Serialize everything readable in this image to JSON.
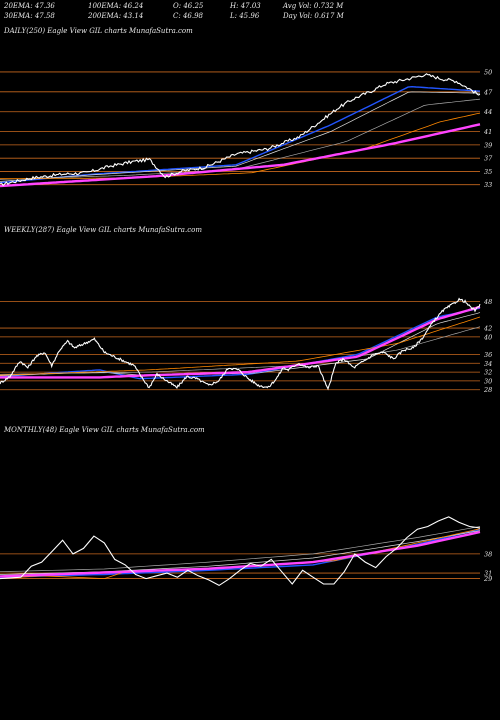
{
  "header": {
    "row1": [
      "20EMA: 47.36",
      "100EMA: 46.24",
      "O: 46.25",
      "H: 47.03",
      "Avg Vol: 0.732  M"
    ],
    "row2": [
      "30EMA: 47.58",
      "200EMA: 43.14",
      "C: 46.98",
      "L: 45.96",
      "Day Vol: 0.617 M"
    ]
  },
  "colors": {
    "background": "#000000",
    "price": "#ffffff",
    "ema_short": "#2255ff",
    "ema_long": "#ff44ff",
    "ema_mid": "#ff8800",
    "level_line": "#c8681e"
  },
  "chart_data": [
    {
      "type": "line",
      "title": "DAILY(250) Eagle  View  GIL  charts MunafaSutra.com",
      "y_ticks": [
        50,
        47,
        44,
        41,
        39,
        37,
        35,
        33
      ],
      "ylim": [
        32.2,
        51.8
      ],
      "n": 250,
      "price_keys": [
        [
          0,
          33.0
        ],
        [
          20,
          34.0
        ],
        [
          40,
          34.6
        ],
        [
          55,
          34.8
        ],
        [
          70,
          35.8
        ],
        [
          85,
          36.5
        ],
        [
          95,
          36.8
        ],
        [
          105,
          34.2
        ],
        [
          115,
          35.0
        ],
        [
          130,
          35.6
        ],
        [
          150,
          37.6
        ],
        [
          170,
          38.4
        ],
        [
          190,
          40.2
        ],
        [
          205,
          42.8
        ],
        [
          215,
          44.6
        ],
        [
          225,
          46.0
        ],
        [
          235,
          47.0
        ],
        [
          245,
          48.2
        ],
        [
          260,
          49.0
        ],
        [
          270,
          49.6
        ],
        [
          280,
          49.0
        ],
        [
          290,
          48.6
        ],
        [
          300,
          47.2
        ],
        [
          305,
          46.4
        ]
      ],
      "series": [
        {
          "values": [
            [
              0,
              33.3
            ],
            [
              60,
              34.6
            ],
            [
              150,
              36.0
            ],
            [
              210,
              42.0
            ],
            [
              260,
              47.8
            ],
            [
              305,
              47.1
            ]
          ]
        },
        {
          "values": [
            [
              0,
              33.5
            ],
            [
              60,
              34.5
            ],
            [
              150,
              35.8
            ],
            [
              210,
              41.0
            ],
            [
              260,
              47.0
            ],
            [
              305,
              46.8
            ]
          ]
        },
        {
          "values": [
            [
              0,
              33.8
            ],
            [
              80,
              34.4
            ],
            [
              150,
              35.3
            ],
            [
              220,
              39.5
            ],
            [
              270,
              45.0
            ],
            [
              305,
              45.9
            ]
          ]
        },
        {
          "values": [
            [
              0,
              33.9
            ],
            [
              80,
              34.0
            ],
            [
              160,
              34.8
            ],
            [
              230,
              38.3
            ],
            [
              280,
              42.5
            ],
            [
              305,
              43.8
            ]
          ]
        },
        {
          "values": [
            [
              0,
              32.8
            ],
            [
              100,
              34.3
            ],
            [
              180,
              36.0
            ],
            [
              250,
              39.2
            ],
            [
              305,
              42.1
            ]
          ]
        }
      ]
    },
    {
      "type": "line",
      "title": "WEEKLY(287) Eagle  View  GIL  charts MunafaSutra.com",
      "y_ticks": [
        48,
        42,
        40,
        36,
        34,
        32,
        30,
        28
      ],
      "ylim": [
        26.8,
        49.5
      ],
      "n": 287,
      "price_keys": [
        [
          0,
          29.5
        ],
        [
          10,
          31.0
        ],
        [
          20,
          34.5
        ],
        [
          28,
          33.0
        ],
        [
          36,
          35.5
        ],
        [
          45,
          36.5
        ],
        [
          52,
          33.5
        ],
        [
          60,
          37.0
        ],
        [
          68,
          39.0
        ],
        [
          75,
          37.5
        ],
        [
          85,
          38.5
        ],
        [
          95,
          39.5
        ],
        [
          105,
          36.5
        ],
        [
          115,
          35.5
        ],
        [
          125,
          34.5
        ],
        [
          135,
          33.5
        ],
        [
          142,
          31.0
        ],
        [
          150,
          28.5
        ],
        [
          158,
          31.5
        ],
        [
          168,
          30.0
        ],
        [
          178,
          28.5
        ],
        [
          188,
          31.0
        ],
        [
          198,
          30.5
        ],
        [
          210,
          29.0
        ],
        [
          220,
          30.0
        ],
        [
          230,
          33.0
        ],
        [
          240,
          32.5
        ],
        [
          250,
          30.5
        ],
        [
          260,
          29.0
        ],
        [
          270,
          28.5
        ],
        [
          278,
          30.5
        ],
        [
          285,
          33.0
        ],
        [
          290,
          32.5
        ],
        [
          300,
          34.0
        ],
        [
          310,
          33.0
        ],
        [
          320,
          33.5
        ],
        [
          330,
          28.0
        ],
        [
          338,
          34.0
        ],
        [
          346,
          35.0
        ],
        [
          356,
          33.0
        ],
        [
          366,
          34.5
        ],
        [
          376,
          36.0
        ],
        [
          386,
          36.5
        ],
        [
          396,
          35.0
        ],
        [
          406,
          37.0
        ],
        [
          416,
          37.5
        ],
        [
          426,
          40.0
        ],
        [
          436,
          43.5
        ],
        [
          446,
          46.0
        ],
        [
          456,
          47.5
        ],
        [
          462,
          48.5
        ],
        [
          468,
          48.0
        ],
        [
          472,
          47.0
        ],
        [
          478,
          46.0
        ],
        [
          483,
          47.2
        ]
      ],
      "series": [
        {
          "values": [
            [
              0,
              31.0
            ],
            [
              100,
              32.5
            ],
            [
              140,
              30.5
            ],
            [
              250,
              31.5
            ],
            [
              360,
              36.0
            ],
            [
              440,
              44.5
            ],
            [
              483,
              46.5
            ]
          ]
        },
        {
          "values": [
            [
              0,
              31.2
            ],
            [
              100,
              32.0
            ],
            [
              150,
              31.2
            ],
            [
              260,
              31.8
            ],
            [
              370,
              35.0
            ],
            [
              440,
              43.0
            ],
            [
              483,
              45.5
            ]
          ]
        },
        {
          "values": [
            [
              0,
              31.5
            ],
            [
              150,
              32.0
            ],
            [
              300,
              33.5
            ],
            [
              400,
              37.0
            ],
            [
              483,
              42.3
            ]
          ]
        },
        {
          "values": [
            [
              0,
              31.3
            ],
            [
              150,
              32.5
            ],
            [
              300,
              34.5
            ],
            [
              400,
              38.5
            ],
            [
              483,
              44.5
            ]
          ]
        },
        {
          "values": [
            [
              0,
              30.8
            ],
            [
              100,
              30.8
            ],
            [
              140,
              31.2
            ],
            [
              250,
              32.0
            ],
            [
              360,
              35.5
            ],
            [
              440,
              44.0
            ],
            [
              483,
              46.8
            ]
          ]
        }
      ]
    },
    {
      "type": "line",
      "title": "MONTHLY(48) Eagle  View  GIL  charts MunafaSutra.com",
      "y_ticks": [
        38,
        31,
        29
      ],
      "ylim": [
        23.0,
        59.5
      ],
      "n": 48,
      "price_keys": [
        [
          0,
          29.0
        ],
        [
          2,
          29.5
        ],
        [
          3,
          33.5
        ],
        [
          4,
          35.0
        ],
        [
          5,
          39.0
        ],
        [
          6,
          43.0
        ],
        [
          7,
          38.0
        ],
        [
          8,
          40.0
        ],
        [
          9,
          44.5
        ],
        [
          10,
          42.0
        ],
        [
          11,
          36.0
        ],
        [
          12,
          34.0
        ],
        [
          13,
          30.5
        ],
        [
          14,
          29.0
        ],
        [
          15,
          30.0
        ],
        [
          16,
          31.0
        ],
        [
          17,
          29.5
        ],
        [
          18,
          32.0
        ],
        [
          19,
          30.0
        ],
        [
          20,
          28.5
        ],
        [
          21,
          26.5
        ],
        [
          22,
          29.0
        ],
        [
          23,
          32.0
        ],
        [
          24,
          34.5
        ],
        [
          25,
          33.5
        ],
        [
          26,
          36.0
        ],
        [
          27,
          31.5
        ],
        [
          28,
          27.0
        ],
        [
          29,
          32.0
        ],
        [
          30,
          29.5
        ],
        [
          31,
          27.0
        ],
        [
          32,
          27.0
        ],
        [
          33,
          31.5
        ],
        [
          34,
          38.0
        ],
        [
          35,
          35.0
        ],
        [
          36,
          33.0
        ],
        [
          37,
          37.0
        ],
        [
          38,
          40.0
        ],
        [
          39,
          44.0
        ],
        [
          40,
          47.0
        ],
        [
          41,
          48.0
        ],
        [
          42,
          50.0
        ],
        [
          43,
          51.5
        ],
        [
          44,
          49.5
        ],
        [
          45,
          48.0
        ],
        [
          46,
          47.5
        ]
      ],
      "series": [
        {
          "values": [
            [
              0,
              29.5
            ],
            [
              10,
              30.5
            ],
            [
              20,
              32.0
            ],
            [
              30,
              34.0
            ],
            [
              40,
              41.5
            ],
            [
              46,
              47.0
            ]
          ]
        },
        {
          "values": [
            [
              0,
              30.5
            ],
            [
              10,
              31.5
            ],
            [
              20,
              33.5
            ],
            [
              30,
              36.5
            ],
            [
              40,
              42.5
            ],
            [
              46,
              46.5
            ]
          ]
        },
        {
          "values": [
            [
              0,
              31.5
            ],
            [
              10,
              32.5
            ],
            [
              20,
              35.0
            ],
            [
              30,
              38.0
            ],
            [
              40,
              44.0
            ],
            [
              46,
              48.0
            ]
          ]
        },
        {
          "values": [
            [
              0,
              29.0
            ],
            [
              4,
              30.0
            ],
            [
              10,
              29.0
            ],
            [
              12,
              31.5
            ],
            [
              22,
              33.0
            ],
            [
              32,
              35.5
            ],
            [
              40,
              42.0
            ],
            [
              46,
              47.2
            ]
          ]
        },
        {
          "values": [
            [
              0,
              29.8
            ],
            [
              10,
              31.2
            ],
            [
              20,
              32.6
            ],
            [
              30,
              35.0
            ],
            [
              40,
              41.0
            ],
            [
              46,
              46.0
            ]
          ]
        }
      ]
    }
  ]
}
